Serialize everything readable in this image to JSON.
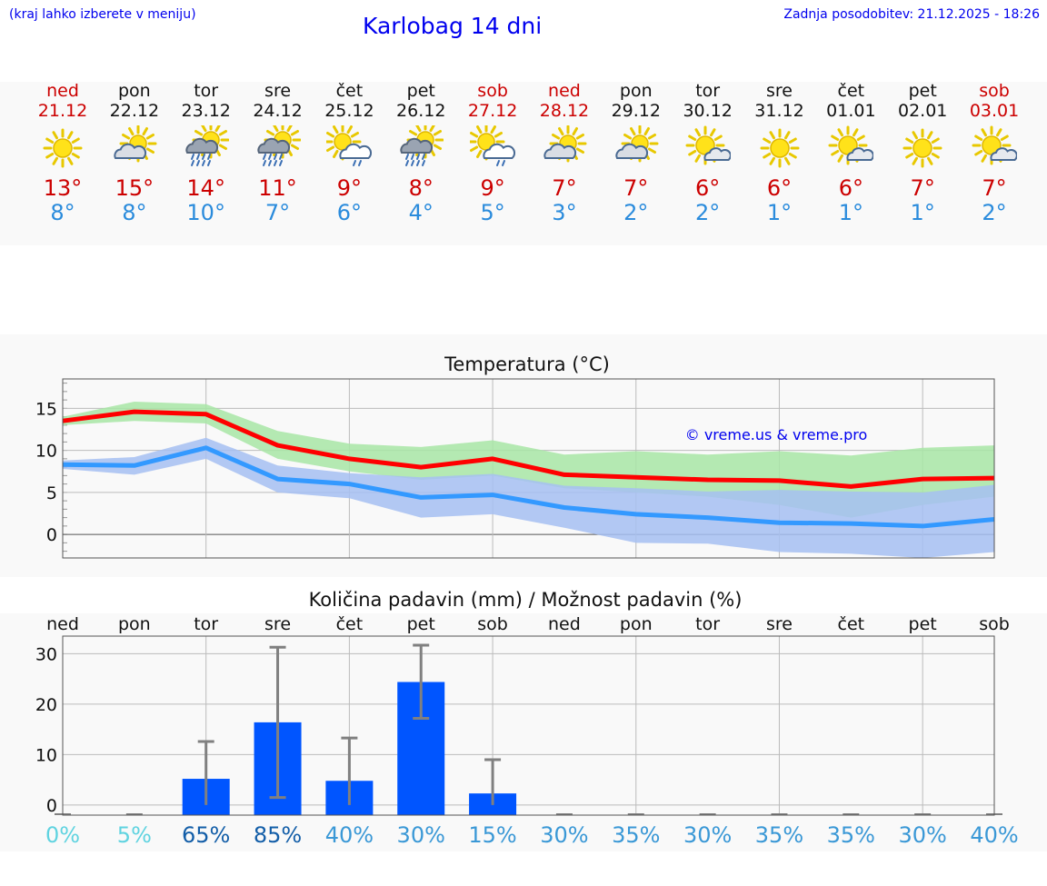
{
  "header": {
    "hint": "(kraj lahko izberete v meniju)",
    "title": "Karlobag 14 dni",
    "updated": "Zadnja posodobitev: 21.12.2025 - 18:26"
  },
  "colors": {
    "max_line": "#ff0000",
    "min_line": "#3399ff",
    "max_band": "#a8e6a6",
    "min_band": "#a6c0f2",
    "overlap_band": "#7fc6a8",
    "bar": "#0055ff",
    "errbar": "#808080"
  },
  "days": [
    {
      "name": "ned",
      "date": "21.12",
      "weekend": true,
      "icon": "sun-icon",
      "max": "13°",
      "min": "8°"
    },
    {
      "name": "pon",
      "date": "22.12",
      "weekend": false,
      "icon": "sun-cloud-icon",
      "max": "15°",
      "min": "8°"
    },
    {
      "name": "tor",
      "date": "23.12",
      "weekend": false,
      "icon": "sun-cloud-heavy-rain-icon",
      "max": "14°",
      "min": "10°"
    },
    {
      "name": "sre",
      "date": "24.12",
      "weekend": false,
      "icon": "sun-cloud-heavy-rain-icon",
      "max": "11°",
      "min": "7°"
    },
    {
      "name": "čet",
      "date": "25.12",
      "weekend": false,
      "icon": "sun-cloud-rain-icon",
      "max": "9°",
      "min": "6°"
    },
    {
      "name": "pet",
      "date": "26.12",
      "weekend": false,
      "icon": "sun-cloud-heavy-rain-icon",
      "max": "8°",
      "min": "4°"
    },
    {
      "name": "sob",
      "date": "27.12",
      "weekend": true,
      "icon": "sun-cloud-rain-icon",
      "max": "9°",
      "min": "5°"
    },
    {
      "name": "ned",
      "date": "28.12",
      "weekend": true,
      "icon": "sun-cloud-icon",
      "max": "7°",
      "min": "3°"
    },
    {
      "name": "pon",
      "date": "29.12",
      "weekend": false,
      "icon": "sun-cloud-icon",
      "max": "7°",
      "min": "2°"
    },
    {
      "name": "tor",
      "date": "30.12",
      "weekend": false,
      "icon": "sun-small-cloud-icon",
      "max": "6°",
      "min": "2°"
    },
    {
      "name": "sre",
      "date": "31.12",
      "weekend": false,
      "icon": "sun-icon",
      "max": "6°",
      "min": "1°"
    },
    {
      "name": "čet",
      "date": "01.01",
      "weekend": false,
      "icon": "sun-small-cloud-icon",
      "max": "6°",
      "min": "1°"
    },
    {
      "name": "pet",
      "date": "02.01",
      "weekend": false,
      "icon": "sun-icon",
      "max": "7°",
      "min": "1°"
    },
    {
      "name": "sob",
      "date": "03.01",
      "weekend": true,
      "icon": "sun-small-cloud-icon",
      "max": "7°",
      "min": "2°"
    }
  ],
  "chart_data": [
    {
      "type": "line",
      "title": "Temperatura (°C)",
      "watermark": "© vreme.us & vreme.pro",
      "x": [
        0,
        1,
        2,
        3,
        4,
        5,
        6,
        7,
        8,
        9,
        10,
        11,
        12,
        13
      ],
      "ylim": [
        -2.8,
        18.5
      ],
      "yticks": [
        "0",
        "5",
        "10",
        "15"
      ],
      "grid": true,
      "series": [
        {
          "name": "max",
          "values": [
            13.5,
            14.6,
            14.3,
            10.6,
            9.0,
            8.0,
            9.0,
            7.1,
            6.8,
            6.5,
            6.4,
            5.7,
            6.6,
            6.7
          ],
          "band_low": [
            13.0,
            13.5,
            13.2,
            9.0,
            7.5,
            6.5,
            7.0,
            5.5,
            5.0,
            4.5,
            3.5,
            2.0,
            3.5,
            4.5
          ],
          "band_high": [
            14.0,
            15.8,
            15.5,
            12.3,
            10.8,
            10.4,
            11.2,
            9.5,
            9.9,
            9.5,
            9.9,
            9.4,
            10.3,
            10.6
          ]
        },
        {
          "name": "min",
          "values": [
            8.3,
            8.2,
            10.3,
            6.6,
            6.0,
            4.4,
            4.7,
            3.2,
            2.4,
            2.0,
            1.4,
            1.3,
            1.0,
            1.8
          ],
          "band_low": [
            7.8,
            7.1,
            9.0,
            5.0,
            4.3,
            2.0,
            2.4,
            0.8,
            -1.0,
            -1.1,
            -2.1,
            -2.3,
            -2.8,
            -2.1
          ],
          "band_high": [
            8.8,
            9.2,
            11.5,
            8.2,
            7.3,
            6.8,
            7.2,
            5.8,
            5.5,
            5.1,
            5.3,
            5.1,
            5.0,
            5.9
          ]
        }
      ]
    },
    {
      "type": "bar",
      "title": "Količina padavin (mm) / Možnost padavin (%)",
      "categories": [
        "ned",
        "pon",
        "tor",
        "sre",
        "čet",
        "pet",
        "sob",
        "ned",
        "pon",
        "tor",
        "sre",
        "čet",
        "pet",
        "sob"
      ],
      "values": [
        0,
        0,
        5.2,
        16.4,
        4.8,
        24.4,
        2.3,
        0,
        0,
        0,
        0,
        0,
        0,
        0
      ],
      "err_low": [
        0,
        0,
        0,
        1.5,
        0,
        17.2,
        0,
        0,
        0,
        0,
        0,
        0,
        0,
        0
      ],
      "err_high": [
        0,
        0,
        12.6,
        31.3,
        13.3,
        31.7,
        9.0,
        0,
        0,
        0,
        0,
        0,
        0,
        0
      ],
      "ylim": [
        -2,
        33.5
      ],
      "yticks": [
        "0",
        "10",
        "20",
        "30"
      ],
      "probabilities": [
        "0%",
        "5%",
        "65%",
        "85%",
        "40%",
        "30%",
        "15%",
        "30%",
        "35%",
        "30%",
        "35%",
        "35%",
        "30%",
        "40%"
      ],
      "prob_values": [
        0,
        5,
        65,
        85,
        40,
        30,
        15,
        30,
        35,
        30,
        35,
        35,
        30,
        40
      ]
    }
  ]
}
